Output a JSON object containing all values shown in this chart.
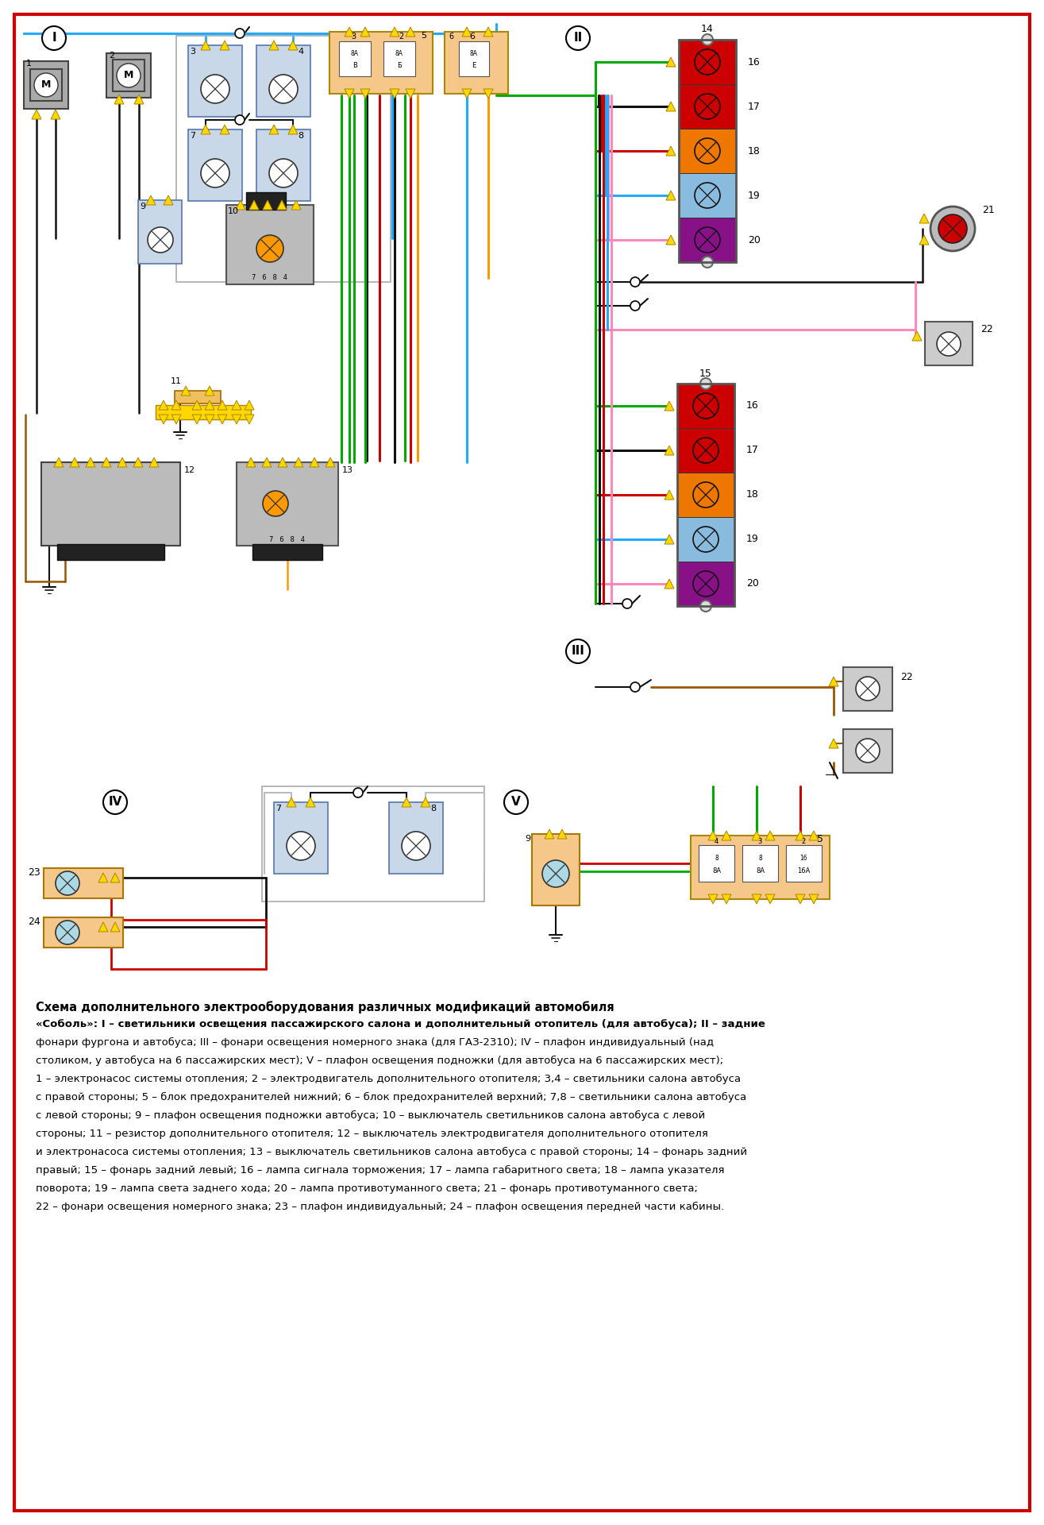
{
  "bg_color": "#ffffff",
  "border_color": "#cc2200",
  "yellow": "#FFD700",
  "red": "#CC0000",
  "green": "#00AA00",
  "blue": "#22AAFF",
  "black": "#111111",
  "orange": "#FF9900",
  "gray": "#999999",
  "lightblue": "#ADD8E6",
  "pink": "#FF88BB",
  "brown": "#995500",
  "purple": "#880088",
  "tan": "#F5C88A",
  "caption_title1": "Схема дополнительного электрооборудования различных модификаций автомобиля",
  "caption_title2": "«Соболь»: I – светильники освещения пассажирского салона и дополнительный отопитель (для автобуса); II – задние",
  "caption_lines": [
    "фонари фургона и автобуса; III – фонари освещения номерного знака (для ГАЗ-2310); IV – плафон индивидуальный (над",
    "столиком, у автобуса на 6 пассажирских мест); V – плафон освещения подножки (для автобуса на 6 пассажирских мест);",
    "1 – электронасос системы отопления; 2 – электродвигатель дополнительного отопителя; 3,4 – светильники салона автобуса",
    "с правой стороны; 5 – блок предохранителей нижний; 6 – блок предохранителей верхний; 7,8 – светильники салона автобуса",
    "с левой стороны; 9 – плафон освещения подножки автобуса; 10 – выключатель светильников салона автобуса с левой",
    "стороны; 11 – резистор дополнительного отопителя; 12 – выключатель электродвигателя дополнительного отопителя",
    "и электронасоса системы отопления; 13 – выключатель светильников салона автобуса с правой стороны; 14 – фонарь задний",
    "правый; 15 – фонарь задний левый; 16 – лампа сигнала торможения; 17 – лампа габаритного света; 18 – лампа указателя",
    "поворота; 19 – лампа света заднего хода; 20 – лампа противотуманного света; 21 – фонарь противотуманного света;",
    "22 – фонари освещения номерного знака; 23 – плафон индивидуальный; 24 – плафон освещения передней части кабины."
  ]
}
